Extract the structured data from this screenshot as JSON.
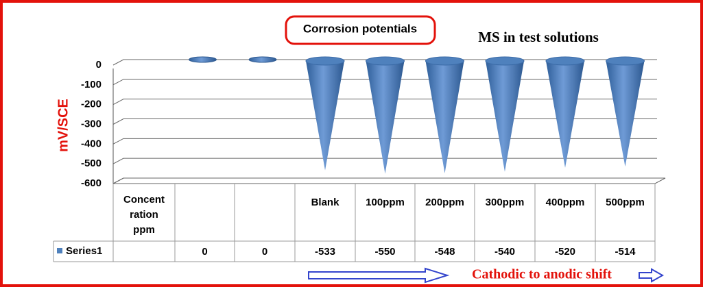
{
  "chart_data": {
    "type": "cone",
    "title": "Corrosion potentials",
    "subtitle": "MS in test solutions",
    "y_label": "mV/SCE",
    "annotation": "Cathodic to anodic shift",
    "categories": [
      "Concent ration ppm",
      null,
      null,
      "Blank",
      "100ppm",
      "200ppm",
      "300ppm",
      "400ppm",
      "500ppm"
    ],
    "series": [
      {
        "name": "Series1",
        "color": "#4f81bd",
        "values": [
          null,
          0,
          0,
          -533,
          -550,
          -548,
          -540,
          -520,
          -514
        ]
      }
    ],
    "ylim": [
      -600,
      0
    ],
    "yticks": [
      0,
      -100,
      -200,
      -300,
      -400,
      -500,
      -600
    ],
    "grid": true
  }
}
